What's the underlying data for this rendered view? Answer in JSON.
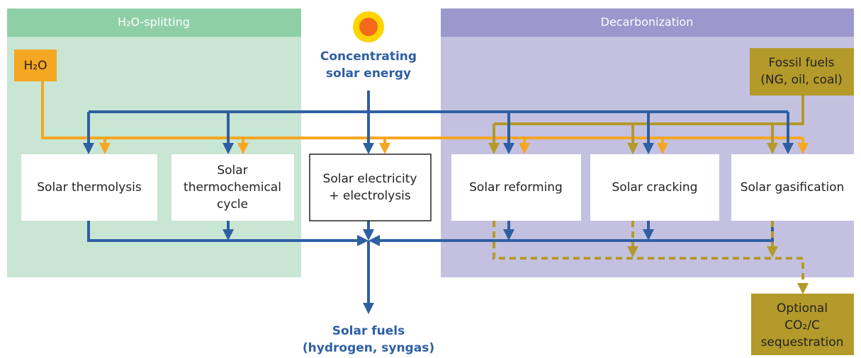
{
  "panels": {
    "left": {
      "title": "H₂O-splitting"
    },
    "right": {
      "title": "Decarbonization"
    }
  },
  "nodes": {
    "water": {
      "label": "H₂O"
    },
    "solar": {
      "label": [
        "Concentrating",
        "solar energy"
      ]
    },
    "fossil": {
      "label": [
        "Fossil fuels",
        "(NG, oil, coal)"
      ]
    },
    "thermolysis": {
      "label": [
        "Solar thermolysis"
      ]
    },
    "thermochemical": {
      "label": [
        "Solar",
        "thermochemical",
        "cycle"
      ]
    },
    "electrolysis": {
      "label": [
        "Solar electricity",
        "+ electrolysis"
      ]
    },
    "reforming": {
      "label": [
        "Solar reforming"
      ]
    },
    "cracking": {
      "label": [
        "Solar cracking"
      ]
    },
    "gasification": {
      "label": [
        "Solar gasification"
      ]
    },
    "fuels": {
      "label": [
        "Solar fuels",
        "(hydrogen, syngas)"
      ]
    },
    "sequestration": {
      "label": [
        "Optional",
        "CO₂/C",
        "sequestration"
      ]
    }
  }
}
